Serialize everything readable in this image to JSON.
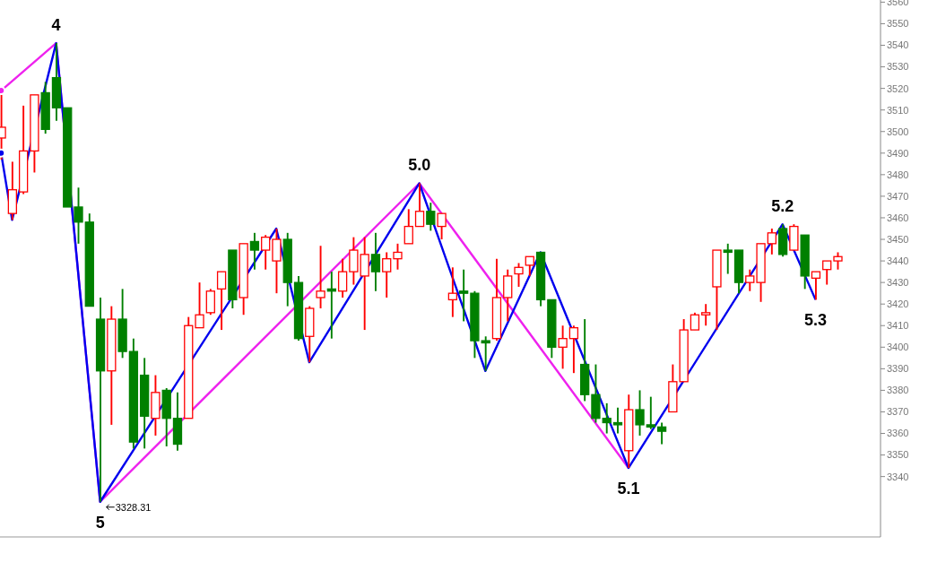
{
  "chart_data": {
    "type": "candlestick",
    "categories": [
      null,
      null,
      null,
      null,
      null,
      null,
      null,
      null,
      null,
      null,
      null,
      null,
      null,
      null,
      null,
      null,
      null,
      null,
      null,
      null,
      null,
      null,
      null,
      null,
      null,
      null,
      null,
      null,
      null,
      null,
      null,
      null,
      null,
      null,
      null,
      null,
      null,
      null,
      null,
      null,
      null,
      null,
      null,
      null,
      null,
      null,
      null,
      null,
      null,
      null,
      null,
      null,
      null,
      null,
      null,
      null,
      null,
      null,
      null,
      null,
      null,
      null,
      null,
      null,
      null,
      null,
      null,
      null,
      null,
      null,
      null,
      null,
      null,
      null,
      null,
      null,
      null
    ],
    "ohlc": [
      [
        3497,
        3517,
        3487,
        3502
      ],
      [
        3462,
        3486,
        3459,
        3473
      ],
      [
        3472,
        3512,
        3471,
        3491
      ],
      [
        3491,
        3517,
        3481,
        3517
      ],
      [
        3518,
        3523,
        3499,
        3501
      ],
      [
        3525,
        3541,
        3505,
        3511
      ],
      [
        3511,
        3511,
        3465,
        3465
      ],
      [
        3465,
        3474,
        3448,
        3458
      ],
      [
        3458,
        3462,
        3419,
        3419
      ],
      [
        3413,
        3423,
        3328.31,
        3389
      ],
      [
        3389,
        3419,
        3364,
        3413
      ],
      [
        3413,
        3427,
        3395,
        3398
      ],
      [
        3398,
        3404,
        3353,
        3356
      ],
      [
        3387,
        3395,
        3353,
        3368
      ],
      [
        3367,
        3387,
        3359,
        3379
      ],
      [
        3380,
        3381,
        3354,
        3367
      ],
      [
        3367,
        3379,
        3352,
        3355
      ],
      [
        3367,
        3414,
        3367,
        3410
      ],
      [
        3409,
        3430,
        3409,
        3415
      ],
      [
        3416,
        3427,
        3415,
        3426
      ],
      [
        3427,
        3435,
        3408,
        3435
      ],
      [
        3445,
        3445,
        3418,
        3422
      ],
      [
        3423,
        3448,
        3415,
        3448
      ],
      [
        3449,
        3453,
        3436,
        3445
      ],
      [
        3445,
        3452,
        3436,
        3451
      ],
      [
        3440,
        3455,
        3425,
        3450
      ],
      [
        3450,
        3453,
        3419,
        3430
      ],
      [
        3430,
        3433,
        3403,
        3404
      ],
      [
        3405,
        3419,
        3393,
        3418
      ],
      [
        3423,
        3447,
        3418,
        3426
      ],
      [
        3427,
        3435,
        3404,
        3426
      ],
      [
        3426,
        3441,
        3423,
        3435
      ],
      [
        3435,
        3451,
        3429,
        3445
      ],
      [
        3433,
        3451,
        3408,
        3443
      ],
      [
        3443,
        3453,
        3426,
        3435
      ],
      [
        3435,
        3444,
        3423,
        3441
      ],
      [
        3441,
        3448,
        3436,
        3444
      ],
      [
        3448,
        3464,
        3448,
        3456
      ],
      [
        3456,
        3476,
        3456,
        3463
      ],
      [
        3463,
        3467,
        3454,
        3457
      ],
      [
        3456,
        3462,
        3450,
        3462
      ],
      [
        3422,
        3437,
        3414,
        3425
      ],
      [
        3426,
        3436,
        3412,
        3425
      ],
      [
        3425,
        3426,
        3395,
        3403
      ],
      [
        3403,
        3405,
        3389,
        3402
      ],
      [
        3404,
        3441,
        3403,
        3423
      ],
      [
        3423,
        3436,
        3412,
        3433
      ],
      [
        3434,
        3439,
        3428,
        3437
      ],
      [
        3438,
        3442,
        3433,
        3442
      ],
      [
        3444,
        3444,
        3419,
        3422
      ],
      [
        3422,
        3422,
        3395,
        3400
      ],
      [
        3400,
        3410,
        3390,
        3404
      ],
      [
        3404,
        3410,
        3388,
        3409
      ],
      [
        3392,
        3413,
        3375,
        3378
      ],
      [
        3378,
        3392,
        3365,
        3367
      ],
      [
        3367,
        3374,
        3360,
        3365
      ],
      [
        3365,
        3372,
        3360,
        3364
      ],
      [
        3352,
        3378,
        3344,
        3371
      ],
      [
        3371,
        3380,
        3359,
        3364
      ],
      [
        3364,
        3377,
        3362,
        3363
      ],
      [
        3363,
        3365,
        3355,
        3361
      ],
      [
        3370,
        3392,
        3370,
        3384
      ],
      [
        3384,
        3413,
        3384,
        3408
      ],
      [
        3408,
        3416,
        3408,
        3415
      ],
      [
        3415,
        3420,
        3410,
        3416
      ],
      [
        3428,
        3445,
        3408,
        3445
      ],
      [
        3445,
        3448,
        3434,
        3444
      ],
      [
        3445,
        3445,
        3425,
        3430
      ],
      [
        3430,
        3436,
        3426,
        3433
      ],
      [
        3430,
        3448,
        3421,
        3448
      ],
      [
        3448,
        3455,
        3443,
        3453
      ],
      [
        3455,
        3457,
        3442,
        3443
      ],
      [
        3445,
        3457,
        3445,
        3456
      ],
      [
        3452,
        3452,
        3427,
        3433
      ],
      [
        3432,
        3435,
        3422,
        3435
      ],
      [
        3436,
        3440,
        3429,
        3440
      ],
      [
        3440,
        3444,
        3436,
        3442
      ]
    ],
    "colors": [
      "#ff0000",
      "#ff0000",
      "#ff0000",
      "#ff0000",
      "#008000",
      "#008000",
      "#008000",
      "#008000",
      "#008000",
      "#008000",
      "#ff0000",
      "#008000",
      "#008000",
      "#008000",
      "#ff0000",
      "#008000",
      "#008000",
      "#ff0000",
      "#ff0000",
      "#ff0000",
      "#ff0000",
      "#008000",
      "#ff0000",
      "#008000",
      "#ff0000",
      "#ff0000",
      "#008000",
      "#008000",
      "#ff0000",
      "#ff0000",
      "#008000",
      "#ff0000",
      "#ff0000",
      "#ff0000",
      "#008000",
      "#ff0000",
      "#ff0000",
      "#ff0000",
      "#ff0000",
      "#008000",
      "#ff0000",
      "#ff0000",
      "#008000",
      "#008000",
      "#008000",
      "#ff0000",
      "#ff0000",
      "#ff0000",
      "#ff0000",
      "#008000",
      "#008000",
      "#ff0000",
      "#ff0000",
      "#008000",
      "#008000",
      "#008000",
      "#008000",
      "#ff0000",
      "#008000",
      "#008000",
      "#008000",
      "#ff0000",
      "#ff0000",
      "#ff0000",
      "#ff0000",
      "#ff0000",
      "#008000",
      "#008000",
      "#ff0000",
      "#ff0000",
      "#ff0000",
      "#008000",
      "#ff0000",
      "#008000",
      "#ff0000",
      "#ff0000",
      "#ff0000"
    ],
    "series": [
      {
        "type": "line",
        "color": "#ee22ee",
        "values": [
          3519,
          null,
          null,
          null,
          null,
          3541,
          null,
          null,
          null,
          3328.31,
          null,
          null,
          null,
          null,
          null,
          null,
          null,
          null,
          null,
          null,
          null,
          null,
          null,
          null,
          null,
          null,
          null,
          null,
          null,
          null,
          null,
          null,
          null,
          null,
          null,
          null,
          null,
          null,
          3476,
          null,
          null,
          null,
          null,
          null,
          null,
          null,
          null,
          null,
          null,
          null,
          null,
          null,
          null,
          null,
          null,
          null,
          null,
          3344,
          null,
          null,
          null,
          null,
          null,
          null,
          null,
          null,
          null,
          null,
          null,
          null,
          null,
          null,
          null,
          null,
          null,
          null,
          null
        ],
        "value_labels": [
          null,
          null,
          null,
          null,
          null,
          null,
          null,
          null,
          null,
          "3328.31",
          null,
          null,
          null,
          null,
          null,
          null,
          null,
          null,
          null,
          null,
          null,
          null,
          null,
          null,
          null,
          null,
          null,
          null,
          null,
          null,
          null,
          null,
          null,
          null,
          null,
          null,
          null,
          null,
          null,
          null,
          null,
          null,
          null,
          null,
          null,
          null,
          null,
          null,
          null,
          null,
          null,
          null,
          null,
          null,
          null,
          null,
          null,
          null,
          null,
          null,
          null,
          null,
          null,
          null,
          null,
          null,
          null,
          null,
          null,
          null,
          null,
          null,
          null,
          null,
          null,
          null,
          null
        ]
      },
      {
        "type": "line",
        "color": "#0000ee",
        "values": [
          3490,
          3459,
          null,
          null,
          null,
          3541,
          null,
          null,
          null,
          3328.31,
          null,
          null,
          null,
          null,
          null,
          null,
          null,
          null,
          null,
          null,
          null,
          null,
          null,
          null,
          null,
          3455,
          null,
          null,
          3393,
          null,
          null,
          null,
          null,
          null,
          null,
          null,
          null,
          null,
          3476,
          null,
          null,
          null,
          null,
          null,
          3389,
          null,
          null,
          null,
          null,
          3444,
          null,
          null,
          null,
          null,
          null,
          null,
          null,
          3344,
          null,
          null,
          null,
          null,
          null,
          null,
          null,
          null,
          null,
          null,
          null,
          null,
          null,
          3457,
          null,
          null,
          3422,
          null,
          null
        ]
      }
    ],
    "annotations": [
      {
        "text": "4",
        "y": 3541
      },
      {
        "text": "5",
        "y": 3328.31
      },
      {
        "text": "5.0",
        "y": 3476
      },
      {
        "text": "5.1",
        "y": 3344
      },
      {
        "text": "5.2",
        "y": 3457
      },
      {
        "text": "5.3",
        "y": 3422
      }
    ],
    "ylim": [
      3312,
      3561
    ],
    "yticks": [
      3340,
      3350,
      3360,
      3370,
      3380,
      3390,
      3400,
      3410,
      3420,
      3430,
      3440,
      3450,
      3460,
      3470,
      3480,
      3490,
      3500,
      3510,
      3520,
      3530,
      3540,
      3550,
      3560
    ],
    "marker": "none"
  }
}
